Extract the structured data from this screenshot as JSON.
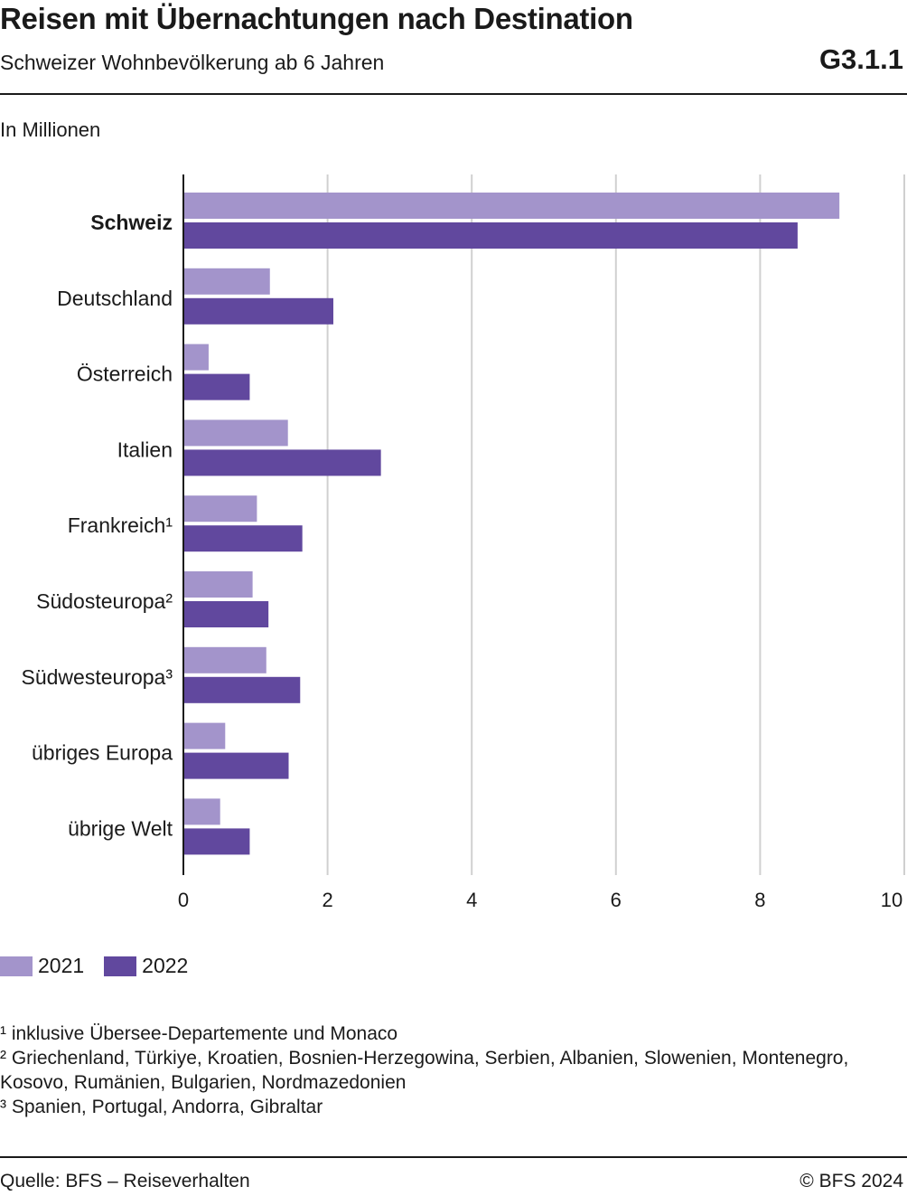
{
  "header": {
    "title": "Reisen mit Übernachtungen nach Destination",
    "subtitle": "Schweizer Wohnbevölkerung ab 6 Jahren",
    "code": "G3.1.1"
  },
  "unit_label": "In Millionen",
  "colors": {
    "series_2021": "#a394cb",
    "series_2022": "#61489e",
    "grid": "#d0d0d0",
    "axis": "#1a1a1a"
  },
  "chart_data": {
    "type": "bar",
    "orientation": "horizontal",
    "categories": [
      "Schweiz",
      "Deutschland",
      "Österreich",
      "Italien",
      "Frankreich¹",
      "Südosteuropa²",
      "Südwesteuropa³",
      "übriges Europa",
      "übrige Welt"
    ],
    "highlight_category": "Schweiz",
    "series": [
      {
        "name": "2021",
        "values": [
          9.1,
          1.2,
          0.35,
          1.45,
          1.02,
          0.96,
          1.15,
          0.58,
          0.51
        ]
      },
      {
        "name": "2022",
        "values": [
          8.52,
          2.08,
          0.92,
          2.74,
          1.65,
          1.18,
          1.62,
          1.46,
          0.92
        ]
      }
    ],
    "xlim": [
      0,
      10
    ],
    "xticks": [
      "0",
      "2",
      "4",
      "6",
      "8",
      "10"
    ],
    "grid": true,
    "legend_position": "bottom-left"
  },
  "footnotes": [
    "¹ inklusive Übersee-Departemente und Monaco",
    "² Griechenland, Türkiye, Kroatien, Bosnien-Herzegowina, Serbien, Albanien, Slowenien, Montenegro,",
    "Kosovo, Rumänien, Bulgarien, Nordmazedonien",
    "³ Spanien, Portugal, Andorra, Gibraltar"
  ],
  "source": "Quelle: BFS – Reiseverhalten",
  "copyright": "© BFS 2024"
}
